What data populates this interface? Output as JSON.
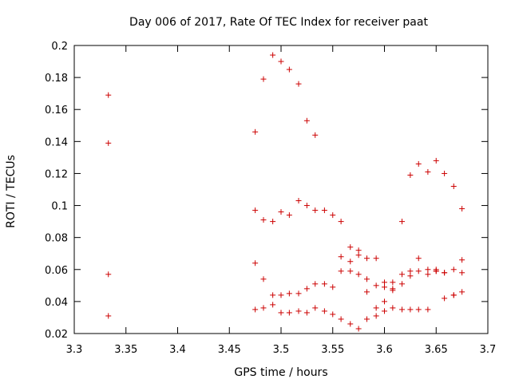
{
  "chart_data": {
    "type": "scatter",
    "title": "Day 006 of 2017, Rate Of TEC Index for receiver paat",
    "xlabel": "GPS time / hours",
    "ylabel": "ROTI / TECUs",
    "xlim": [
      3.3,
      3.7
    ],
    "ylim": [
      0.02,
      0.2
    ],
    "xticks": [
      "3.3",
      "3.35",
      "3.4",
      "3.45",
      "3.5",
      "3.55",
      "3.6",
      "3.65",
      "3.7"
    ],
    "yticks": [
      "0.02",
      "0.04",
      "0.06",
      "0.08",
      "0.1",
      "0.12",
      "0.14",
      "0.16",
      "0.18",
      "0.2"
    ],
    "grid": false,
    "marker": "+",
    "color": "#cc0000",
    "points": [
      [
        3.333,
        0.169
      ],
      [
        3.333,
        0.139
      ],
      [
        3.333,
        0.057
      ],
      [
        3.333,
        0.031
      ],
      [
        3.475,
        0.146
      ],
      [
        3.475,
        0.097
      ],
      [
        3.475,
        0.064
      ],
      [
        3.475,
        0.035
      ],
      [
        3.483,
        0.179
      ],
      [
        3.483,
        0.091
      ],
      [
        3.483,
        0.054
      ],
      [
        3.483,
        0.036
      ],
      [
        3.492,
        0.194
      ],
      [
        3.492,
        0.09
      ],
      [
        3.492,
        0.044
      ],
      [
        3.492,
        0.038
      ],
      [
        3.5,
        0.19
      ],
      [
        3.5,
        0.096
      ],
      [
        3.5,
        0.044
      ],
      [
        3.5,
        0.033
      ],
      [
        3.508,
        0.185
      ],
      [
        3.508,
        0.094
      ],
      [
        3.508,
        0.045
      ],
      [
        3.508,
        0.033
      ],
      [
        3.517,
        0.176
      ],
      [
        3.517,
        0.103
      ],
      [
        3.517,
        0.045
      ],
      [
        3.517,
        0.034
      ],
      [
        3.525,
        0.153
      ],
      [
        3.525,
        0.1
      ],
      [
        3.525,
        0.048
      ],
      [
        3.525,
        0.033
      ],
      [
        3.533,
        0.144
      ],
      [
        3.533,
        0.097
      ],
      [
        3.533,
        0.051
      ],
      [
        3.533,
        0.036
      ],
      [
        3.542,
        0.097
      ],
      [
        3.542,
        0.051
      ],
      [
        3.542,
        0.034
      ],
      [
        3.55,
        0.094
      ],
      [
        3.55,
        0.049
      ],
      [
        3.55,
        0.032
      ],
      [
        3.558,
        0.09
      ],
      [
        3.558,
        0.068
      ],
      [
        3.558,
        0.059
      ],
      [
        3.558,
        0.029
      ],
      [
        3.567,
        0.074
      ],
      [
        3.567,
        0.065
      ],
      [
        3.567,
        0.059
      ],
      [
        3.567,
        0.026
      ],
      [
        3.575,
        0.072
      ],
      [
        3.575,
        0.069
      ],
      [
        3.575,
        0.057
      ],
      [
        3.575,
        0.023
      ],
      [
        3.583,
        0.067
      ],
      [
        3.583,
        0.054
      ],
      [
        3.583,
        0.046
      ],
      [
        3.583,
        0.029
      ],
      [
        3.592,
        0.067
      ],
      [
        3.592,
        0.05
      ],
      [
        3.592,
        0.036
      ],
      [
        3.592,
        0.031
      ],
      [
        3.6,
        0.052
      ],
      [
        3.6,
        0.049
      ],
      [
        3.6,
        0.04
      ],
      [
        3.6,
        0.034
      ],
      [
        3.608,
        0.052
      ],
      [
        3.608,
        0.048
      ],
      [
        3.608,
        0.047
      ],
      [
        3.608,
        0.036
      ],
      [
        3.617,
        0.09
      ],
      [
        3.617,
        0.057
      ],
      [
        3.617,
        0.051
      ],
      [
        3.617,
        0.035
      ],
      [
        3.625,
        0.119
      ],
      [
        3.625,
        0.059
      ],
      [
        3.625,
        0.056
      ],
      [
        3.625,
        0.035
      ],
      [
        3.633,
        0.126
      ],
      [
        3.633,
        0.067
      ],
      [
        3.633,
        0.059
      ],
      [
        3.633,
        0.035
      ],
      [
        3.642,
        0.121
      ],
      [
        3.642,
        0.06
      ],
      [
        3.642,
        0.057
      ],
      [
        3.642,
        0.035
      ],
      [
        3.65,
        0.128
      ],
      [
        3.65,
        0.06
      ],
      [
        3.65,
        0.059
      ],
      [
        3.65,
        0.059
      ],
      [
        3.658,
        0.12
      ],
      [
        3.658,
        0.058
      ],
      [
        3.658,
        0.058
      ],
      [
        3.658,
        0.042
      ],
      [
        3.667,
        0.112
      ],
      [
        3.667,
        0.06
      ],
      [
        3.667,
        0.044
      ],
      [
        3.667,
        0.044
      ],
      [
        3.675,
        0.098
      ],
      [
        3.675,
        0.066
      ],
      [
        3.675,
        0.058
      ],
      [
        3.675,
        0.046
      ]
    ]
  }
}
